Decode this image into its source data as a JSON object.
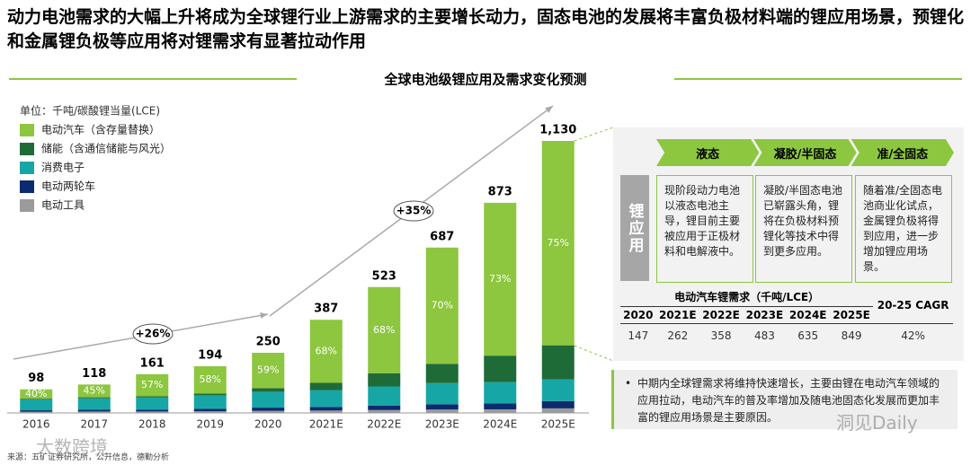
{
  "header": {
    "title": "动力电池需求的大幅上升将成为全球锂行业上游需求的主要增长动力，固态电池的发展将丰富负极材料端的锂应用场景，预锂化和金属锂负极等应用将对锂需求有显著拉动作用"
  },
  "chart_data": {
    "type": "stacked_bar",
    "title": "全球电池级锂应用及需求变化预测",
    "unit": "单位：千吨/碳酸锂当量(LCE)",
    "categories": [
      "2016",
      "2017",
      "2018",
      "2019",
      "2020",
      "2021E",
      "2022E",
      "2023E",
      "2024E",
      "2025E"
    ],
    "series": [
      {
        "name": "电动汽车（含存量替换）",
        "color": "#8dc63f",
        "values": [
          39,
          53,
          92,
          113,
          147,
          262,
          358,
          483,
          635,
          849
        ]
      },
      {
        "name": "储能（含通信储能与风光）",
        "color": "#1f6b37",
        "values": [
          3,
          4,
          5,
          8,
          15,
          30,
          55,
          80,
          110,
          142
        ]
      },
      {
        "name": "消费电子",
        "color": "#17a6a6",
        "values": [
          45,
          48,
          50,
          56,
          66,
          70,
          80,
          88,
          88,
          90
        ]
      },
      {
        "name": "电动两轮车",
        "color": "#0c2a6e",
        "values": [
          6,
          7,
          8,
          10,
          13,
          15,
          18,
          22,
          25,
          30
        ]
      },
      {
        "name": "电动工具",
        "color": "#9b9b9b",
        "values": [
          5,
          6,
          6,
          7,
          9,
          10,
          12,
          14,
          15,
          19
        ]
      }
    ],
    "totals": {
      "values": [
        98,
        118,
        161,
        194,
        250,
        387,
        523,
        687,
        873,
        1130
      ],
      "value_labels": [
        "98",
        "118",
        "161",
        "194",
        "250",
        "387",
        "523",
        "687",
        "873",
        "1,130"
      ]
    },
    "ev_share": {
      "values": [
        40,
        45,
        57,
        58,
        59,
        68,
        68,
        70,
        73,
        75
      ],
      "value_labels": [
        "40%",
        "45%",
        "57%",
        "58%",
        "59%",
        "68%",
        "68%",
        "70%",
        "73%",
        "75%"
      ]
    },
    "annotations": [
      "+26%",
      "+35%"
    ]
  },
  "panel": {
    "label": "锂应用",
    "stages": [
      "液态",
      "凝胶/半固态",
      "准/全固态"
    ],
    "texts": [
      "现阶段动力电池以液态电池主导，锂目前主要被应用于正极材料和电解液中。",
      "凝胶/半固态电池已崭露头角，锂将在负极材料预锂化等技术中得到更多应用。",
      "随着准/全固态电池商业化试点，金属锂负极将得到应用，进一步增加锂应用场景。"
    ]
  },
  "table": {
    "title": "电动汽车锂需求（千吨/LCE）",
    "header": [
      "2020",
      "2021E",
      "2022E",
      "2023E",
      "2024E",
      "2025E",
      "20-25 CAGR"
    ],
    "rows": [
      [
        "147",
        "262",
        "358",
        "483",
        "635",
        "849",
        "42%"
      ]
    ]
  },
  "note": "中期内全球锂需求将维持快速增长，主要由锂在电动汽车领域的应用拉动，电动汽车的普及率增加及随电池固态化发展而更加丰富的锂应用场景是主要原因。",
  "source": "来源：五矿证券研究所，公开信息，德勤分析",
  "watermarks": [
    "大数跨境",
    "洞见Daily"
  ]
}
